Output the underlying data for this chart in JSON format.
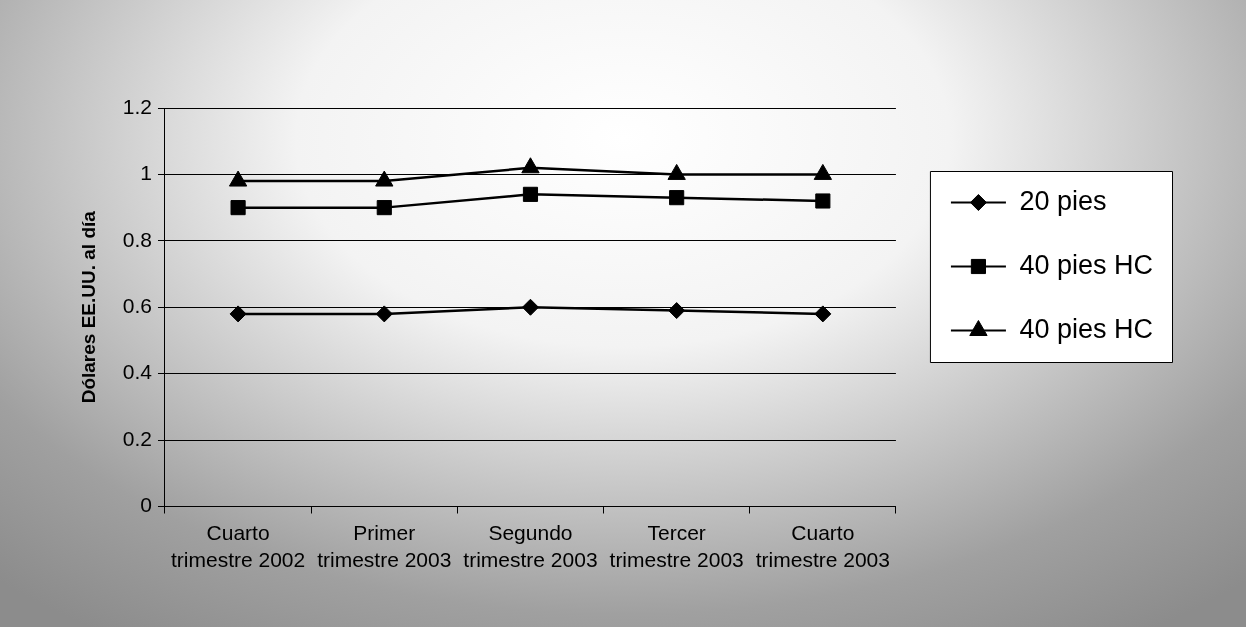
{
  "chart_data": {
    "type": "line",
    "ylabel": "Dólares EE.UU. al día",
    "categories": [
      "Cuarto trimestre 2002",
      "Primer trimestre 2003",
      "Segundo trimestre 2003",
      "Tercer trimestre 2003",
      "Cuarto trimestre 2003"
    ],
    "series": [
      {
        "name": "20 pies",
        "color": "#000000",
        "marker": "diamond",
        "values": [
          0.58,
          0.58,
          0.6,
          0.59,
          0.58
        ]
      },
      {
        "name": "40 pies HC",
        "color": "#000000",
        "marker": "square",
        "values": [
          0.9,
          0.9,
          0.94,
          0.93,
          0.92
        ]
      },
      {
        "name": "40 pies HC",
        "color": "#000000",
        "marker": "triangle",
        "values": [
          0.98,
          0.98,
          1.02,
          1.0,
          1.0
        ]
      }
    ],
    "ylim": [
      0,
      1.2
    ],
    "yticks": [
      0,
      0.2,
      0.4,
      0.6,
      0.8,
      1,
      1.2
    ],
    "grid": "y",
    "legend": "right",
    "line_style": "solid"
  }
}
